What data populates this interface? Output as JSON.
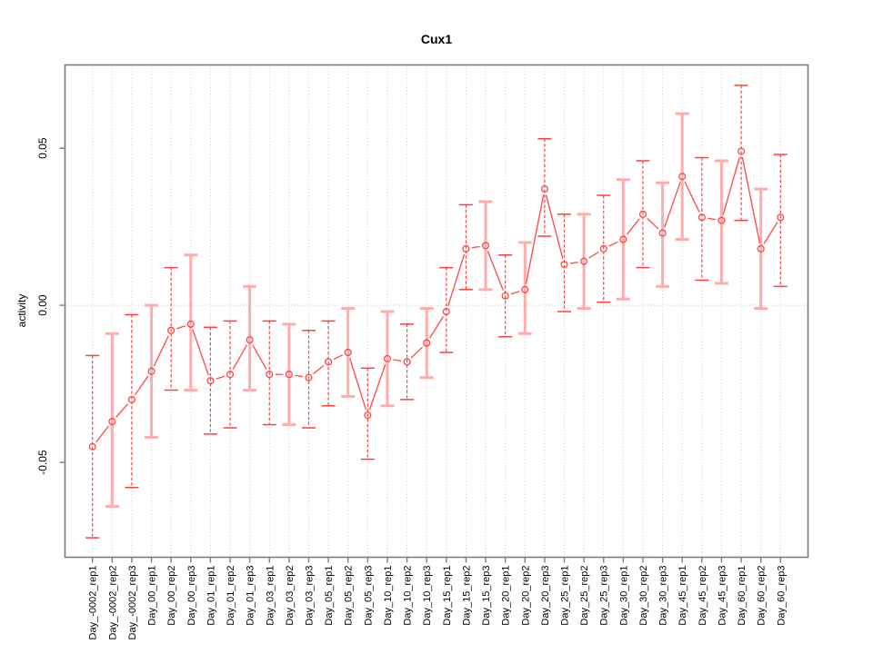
{
  "chart_data": {
    "type": "line",
    "title": "Cux1",
    "xlabel": "",
    "ylabel": "activity",
    "legend_position": "none",
    "grid": {
      "vertical": "dotted at every category",
      "horizontal": "dotted at zero only"
    },
    "ylim": [
      -0.0802,
      0.0765
    ],
    "yticks": [
      {
        "label": "-0.05",
        "value": -0.05
      },
      {
        "label": "0.00",
        "value": 0.0
      },
      {
        "label": "0.05",
        "value": 0.05
      }
    ],
    "categories": [
      "Day_-0002_rep1",
      "Day_-0002_rep2",
      "Day_-0002_rep3",
      "Day_00_rep1",
      "Day_00_rep2",
      "Day_00_rep3",
      "Day_01_rep1",
      "Day_01_rep2",
      "Day_01_rep3",
      "Day_03_rep1",
      "Day_03_rep2",
      "Day_03_rep3",
      "Day_05_rep1",
      "Day_05_rep2",
      "Day_05_rep3",
      "Day_10_rep1",
      "Day_10_rep2",
      "Day_10_rep3",
      "Day_15_rep1",
      "Day_15_rep2",
      "Day_15_rep3",
      "Day_20_rep1",
      "Day_20_rep2",
      "Day_20_rep3",
      "Day_25_rep1",
      "Day_25_rep2",
      "Day_25_rep3",
      "Day_30_rep1",
      "Day_30_rep2",
      "Day_30_rep3",
      "Day_45_rep1",
      "Day_45_rep2",
      "Day_45_rep3",
      "Day_60_rep1",
      "Day_60_rep2",
      "Day_60_rep3"
    ],
    "series": [
      {
        "name": "activity",
        "marker": "open-circle",
        "values": [
          -0.045,
          -0.037,
          -0.03,
          -0.021,
          -0.008,
          -0.006,
          -0.024,
          -0.022,
          -0.011,
          -0.022,
          -0.022,
          -0.023,
          -0.018,
          -0.015,
          -0.035,
          -0.017,
          -0.018,
          -0.012,
          -0.002,
          0.018,
          0.019,
          0.003,
          0.005,
          0.037,
          0.013,
          0.014,
          0.018,
          0.021,
          0.029,
          0.023,
          0.041,
          0.028,
          0.027,
          0.049,
          0.018,
          0.028
        ],
        "error_low": [
          -0.074,
          -0.064,
          -0.058,
          -0.042,
          -0.027,
          -0.027,
          -0.041,
          -0.039,
          -0.027,
          -0.038,
          -0.038,
          -0.039,
          -0.032,
          -0.029,
          -0.049,
          -0.032,
          -0.03,
          -0.023,
          -0.015,
          0.005,
          0.005,
          -0.01,
          -0.009,
          0.022,
          -0.002,
          -0.001,
          0.001,
          0.002,
          0.012,
          0.006,
          0.021,
          0.008,
          0.007,
          0.027,
          -0.001,
          0.006
        ],
        "error_high": [
          -0.016,
          -0.009,
          -0.003,
          0.0,
          0.012,
          0.016,
          -0.007,
          -0.005,
          0.006,
          -0.005,
          -0.006,
          -0.008,
          -0.005,
          -0.001,
          -0.02,
          -0.002,
          -0.006,
          -0.001,
          0.012,
          0.032,
          0.033,
          0.016,
          0.02,
          0.053,
          0.029,
          0.029,
          0.035,
          0.04,
          0.046,
          0.039,
          0.061,
          0.047,
          0.046,
          0.07,
          0.037,
          0.048
        ],
        "error_bar_style": [
          "dashed",
          "pale",
          "dashed",
          "pale",
          "dashed",
          "pale",
          "dashed",
          "dashed",
          "pale",
          "dashed",
          "pale",
          "dashed",
          "dashed",
          "pale",
          "dashed",
          "pale",
          "dashed",
          "pale",
          "dashed",
          "dashed",
          "pale",
          "dashed",
          "pale",
          "dashed",
          "dashed",
          "pale",
          "dashed",
          "pale",
          "dashed",
          "pale",
          "pale",
          "dashed",
          "pale",
          "dashed",
          "pale",
          "dashed"
        ]
      }
    ],
    "colors": {
      "series_line": "#ff5252",
      "marker_stroke": "#ff4444",
      "error_dashed": "#ff4040",
      "error_pale": "#ffacac",
      "gridline": "#cccccc",
      "zero_line": "#c8c8c8",
      "frame": "#7d7d7d",
      "tick": "#7d7d7d",
      "text": "#000000",
      "background": "#ffffff"
    }
  }
}
